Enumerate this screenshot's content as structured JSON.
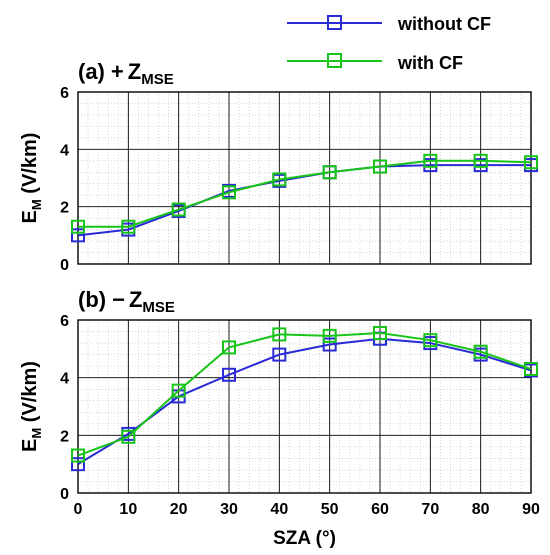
{
  "legend": {
    "entries": [
      {
        "label": "without CF",
        "color": "#2a2ad6"
      },
      {
        "label": "with CF",
        "color": "#18c418"
      }
    ]
  },
  "chart_data": [
    {
      "type": "line",
      "panel_label": "(a)",
      "panel_sign": "+",
      "panel_symbol": "Z",
      "panel_subscript": "MSE",
      "xlabel": "SZA (°)",
      "ylabel_main": "E",
      "ylabel_sub": "M",
      "ylabel_unit": " (V/km)",
      "xlim": [
        0,
        90
      ],
      "ylim": [
        0,
        6
      ],
      "xticks": [
        0,
        10,
        20,
        30,
        40,
        50,
        60,
        70,
        80,
        90
      ],
      "yticks": [
        0,
        2,
        4,
        6
      ],
      "show_xtick_labels": false,
      "grid": true,
      "x": [
        0,
        10,
        20,
        30,
        40,
        50,
        60,
        70,
        80,
        90
      ],
      "series": [
        {
          "name": "without CF",
          "color": "#2a2ad6",
          "values": [
            1.0,
            1.2,
            1.85,
            2.55,
            2.9,
            3.2,
            3.4,
            3.45,
            3.45,
            3.45
          ]
        },
        {
          "name": "with CF",
          "color": "#18c418",
          "values": [
            1.3,
            1.3,
            1.9,
            2.5,
            2.95,
            3.2,
            3.4,
            3.6,
            3.6,
            3.55
          ]
        }
      ]
    },
    {
      "type": "line",
      "panel_label": "(b)",
      "panel_sign": "−",
      "panel_symbol": "Z",
      "panel_subscript": "MSE",
      "xlabel": "SZA (°)",
      "ylabel_main": "E",
      "ylabel_sub": "M",
      "ylabel_unit": " (V/km)",
      "xlim": [
        0,
        90
      ],
      "ylim": [
        0,
        6
      ],
      "xticks": [
        0,
        10,
        20,
        30,
        40,
        50,
        60,
        70,
        80,
        90
      ],
      "yticks": [
        0,
        2,
        4,
        6
      ],
      "show_xtick_labels": true,
      "grid": true,
      "x": [
        0,
        10,
        20,
        30,
        40,
        50,
        60,
        70,
        80,
        90
      ],
      "series": [
        {
          "name": "without CF",
          "color": "#2a2ad6",
          "values": [
            1.0,
            2.05,
            3.35,
            4.1,
            4.8,
            5.15,
            5.35,
            5.2,
            4.8,
            4.25
          ]
        },
        {
          "name": "with CF",
          "color": "#18c418",
          "values": [
            1.3,
            1.95,
            3.55,
            5.05,
            5.5,
            5.45,
            5.55,
            5.3,
            4.9,
            4.3
          ]
        }
      ]
    }
  ]
}
